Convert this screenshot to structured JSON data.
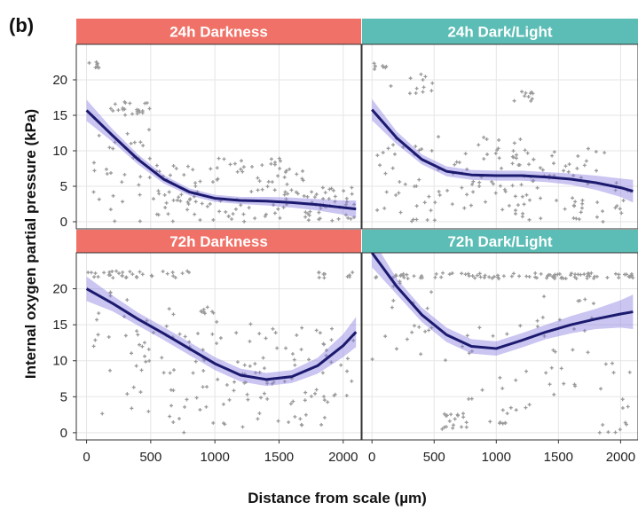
{
  "figure": {
    "panel_letter": "(b)"
  },
  "chart_data": {
    "type": "scatter",
    "xlabel": "Distance from scale (µm)",
    "ylabel": "Internal oxygen partial pressure (kPa)",
    "xlim": [
      -80,
      2140
    ],
    "xticks": [
      0,
      500,
      1000,
      1500,
      2000
    ],
    "colors": {
      "strip_darkness": "#f07167",
      "strip_darklight": "#5bbdb5",
      "points": "#9a9a9a",
      "line": "#1b1a6e",
      "ribbon": "#8a7fe0",
      "grid": "#e5e5e5"
    },
    "panels": [
      {
        "title": "24h Darkness",
        "strip": "darkness",
        "ylim": [
          -1,
          25
        ],
        "yticks": [
          0,
          5,
          10,
          15,
          20
        ],
        "trend": {
          "x": [
            0,
            200,
            400,
            600,
            800,
            1000,
            1200,
            1400,
            1600,
            1800,
            2000,
            2100
          ],
          "y": [
            15.7,
            12.2,
            8.8,
            6.0,
            4.2,
            3.3,
            3.0,
            2.9,
            2.7,
            2.4,
            2.0,
            1.8
          ],
          "lower": [
            14.2,
            11.3,
            8.1,
            5.4,
            3.7,
            2.8,
            2.5,
            2.3,
            2.0,
            1.6,
            1.0,
            0.6
          ],
          "upper": [
            17.2,
            13.1,
            9.5,
            6.6,
            4.7,
            3.8,
            3.5,
            3.5,
            3.4,
            3.2,
            3.0,
            3.0
          ]
        },
        "clusters": [
          {
            "x": [
              0,
              120
            ],
            "y": [
              21.5,
              22.5
            ],
            "n": 8
          },
          {
            "x": [
              150,
              500
            ],
            "y": [
              15,
              17
            ],
            "n": 22
          },
          {
            "x": [
              50,
              600
            ],
            "y": [
              0,
              13
            ],
            "n": 35
          },
          {
            "x": [
              500,
              1000
            ],
            "y": [
              0,
              8
            ],
            "n": 45
          },
          {
            "x": [
              1000,
              1700
            ],
            "y": [
              0,
              9
            ],
            "n": 70
          },
          {
            "x": [
              1700,
              2100
            ],
            "y": [
              0,
              5
            ],
            "n": 45
          }
        ]
      },
      {
        "title": "24h Dark/Light",
        "strip": "darklight",
        "ylim": [
          -1,
          25
        ],
        "yticks": [
          0,
          5,
          10,
          15,
          20
        ],
        "trend": {
          "x": [
            0,
            200,
            400,
            600,
            800,
            1000,
            1200,
            1400,
            1600,
            1800,
            2000,
            2100
          ],
          "y": [
            15.8,
            11.8,
            8.8,
            7.1,
            6.6,
            6.5,
            6.5,
            6.3,
            6.0,
            5.5,
            4.8,
            4.3
          ],
          "lower": [
            14.3,
            10.9,
            8.1,
            6.4,
            5.9,
            5.8,
            5.8,
            5.6,
            5.2,
            4.5,
            3.5,
            2.7
          ],
          "upper": [
            17.3,
            12.7,
            9.5,
            7.8,
            7.3,
            7.2,
            7.2,
            7.0,
            6.8,
            6.5,
            6.1,
            5.9
          ]
        },
        "clusters": [
          {
            "x": [
              0,
              120
            ],
            "y": [
              21.5,
              22.5
            ],
            "n": 8
          },
          {
            "x": [
              150,
              500
            ],
            "y": [
              18,
              21
            ],
            "n": 12
          },
          {
            "x": [
              0,
              600
            ],
            "y": [
              0,
              12
            ],
            "n": 40
          },
          {
            "x": [
              600,
              1200
            ],
            "y": [
              1,
              12
            ],
            "n": 55
          },
          {
            "x": [
              1100,
              1300
            ],
            "y": [
              17,
              18.5
            ],
            "n": 10
          },
          {
            "x": [
              1200,
              2100
            ],
            "y": [
              0,
              11
            ],
            "n": 70
          }
        ]
      },
      {
        "title": "72h Darkness",
        "strip": "darkness",
        "ylim": [
          -1,
          25
        ],
        "yticks": [
          0,
          5,
          10,
          15,
          20
        ],
        "trend": {
          "x": [
            0,
            200,
            400,
            600,
            800,
            1000,
            1200,
            1400,
            1600,
            1800,
            2000,
            2100
          ],
          "y": [
            20.0,
            18.0,
            15.8,
            13.8,
            11.7,
            9.6,
            8.0,
            7.4,
            7.8,
            9.3,
            12.1,
            14.0
          ],
          "lower": [
            18.3,
            16.9,
            14.9,
            12.9,
            10.8,
            8.7,
            7.1,
            6.5,
            6.9,
            8.2,
            10.5,
            11.9
          ],
          "upper": [
            21.7,
            19.1,
            16.7,
            14.7,
            12.6,
            10.5,
            8.9,
            8.3,
            8.7,
            10.4,
            13.7,
            16.1
          ]
        },
        "clusters": [
          {
            "x": [
              0,
              300
            ],
            "y": [
              21.5,
              22.5
            ],
            "n": 16
          },
          {
            "x": [
              300,
              800
            ],
            "y": [
              21.5,
              22.5
            ],
            "n": 18
          },
          {
            "x": [
              800,
              1000
            ],
            "y": [
              16.5,
              17.5
            ],
            "n": 8
          },
          {
            "x": [
              50,
              700
            ],
            "y": [
              2,
              20
            ],
            "n": 40
          },
          {
            "x": [
              600,
              1300
            ],
            "y": [
              0,
              16
            ],
            "n": 55
          },
          {
            "x": [
              1300,
              1900
            ],
            "y": [
              1,
              15
            ],
            "n": 55
          },
          {
            "x": [
              1800,
              2100
            ],
            "y": [
              21.5,
              22.5
            ],
            "n": 10
          },
          {
            "x": [
              1900,
              2100
            ],
            "y": [
              5,
              15
            ],
            "n": 12
          }
        ]
      },
      {
        "title": "72h Dark/Light",
        "strip": "darklight",
        "ylim": [
          -1,
          25
        ],
        "yticks": [
          0,
          5,
          10,
          15,
          20
        ],
        "trend": {
          "x": [
            0,
            200,
            400,
            600,
            800,
            1000,
            1200,
            1400,
            1600,
            1800,
            2000,
            2100
          ],
          "y": [
            25.0,
            20.3,
            16.4,
            13.6,
            12.0,
            11.7,
            12.8,
            14.0,
            15.0,
            15.8,
            16.5,
            16.8
          ],
          "lower": [
            23.0,
            19.2,
            15.4,
            12.6,
            11.0,
            10.7,
            11.8,
            13.0,
            13.8,
            14.4,
            14.6,
            14.4
          ],
          "upper": [
            27.0,
            21.4,
            17.4,
            14.6,
            13.0,
            12.7,
            13.8,
            15.0,
            16.2,
            17.2,
            18.4,
            19.2
          ]
        },
        "clusters": [
          {
            "x": [
              0,
              2100
            ],
            "y": [
              21.4,
              22.2
            ],
            "n": 95
          },
          {
            "x": [
              0,
              600
            ],
            "y": [
              10,
              22
            ],
            "n": 20
          },
          {
            "x": [
              500,
              1100
            ],
            "y": [
              0.5,
              3
            ],
            "n": 25
          },
          {
            "x": [
              700,
              1300
            ],
            "y": [
              3,
              15
            ],
            "n": 20
          },
          {
            "x": [
              1300,
              1800
            ],
            "y": [
              5,
              19
            ],
            "n": 25
          },
          {
            "x": [
              1800,
              2100
            ],
            "y": [
              0,
              10
            ],
            "n": 15
          }
        ]
      }
    ]
  }
}
